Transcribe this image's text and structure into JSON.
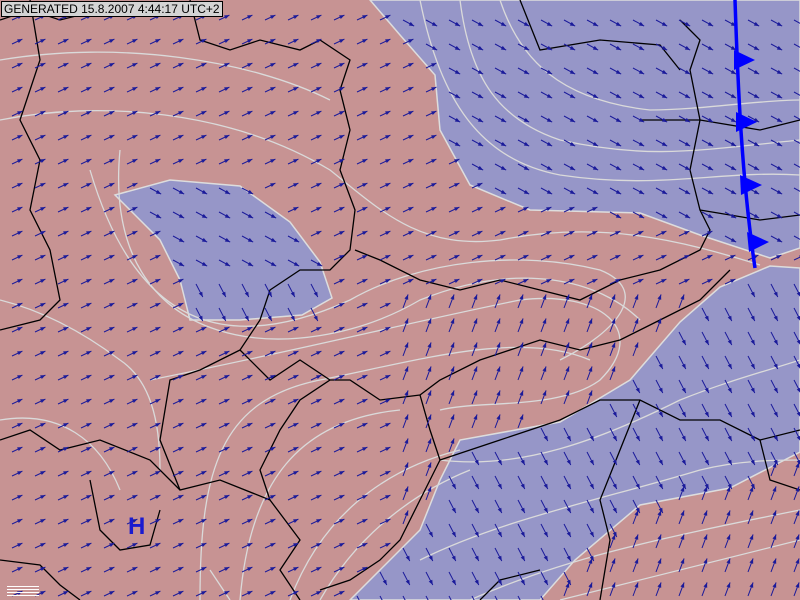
{
  "header": {
    "generated": "GENERATED 15.8.2007 4:44:17 UTC+2"
  },
  "pressure_centers": [
    {
      "label": "H",
      "color": "#1a1ad0"
    }
  ],
  "colors": {
    "warm_region": "#c79393",
    "cool_region": "#9696c8",
    "isolines": "#d8d8d8",
    "wind_arrows": "#1a1a9a",
    "borders": "#000000",
    "cold_front": "#0000ff"
  },
  "front": {
    "type": "cold-front"
  },
  "icons": {
    "legend": "legend-lines-icon"
  }
}
